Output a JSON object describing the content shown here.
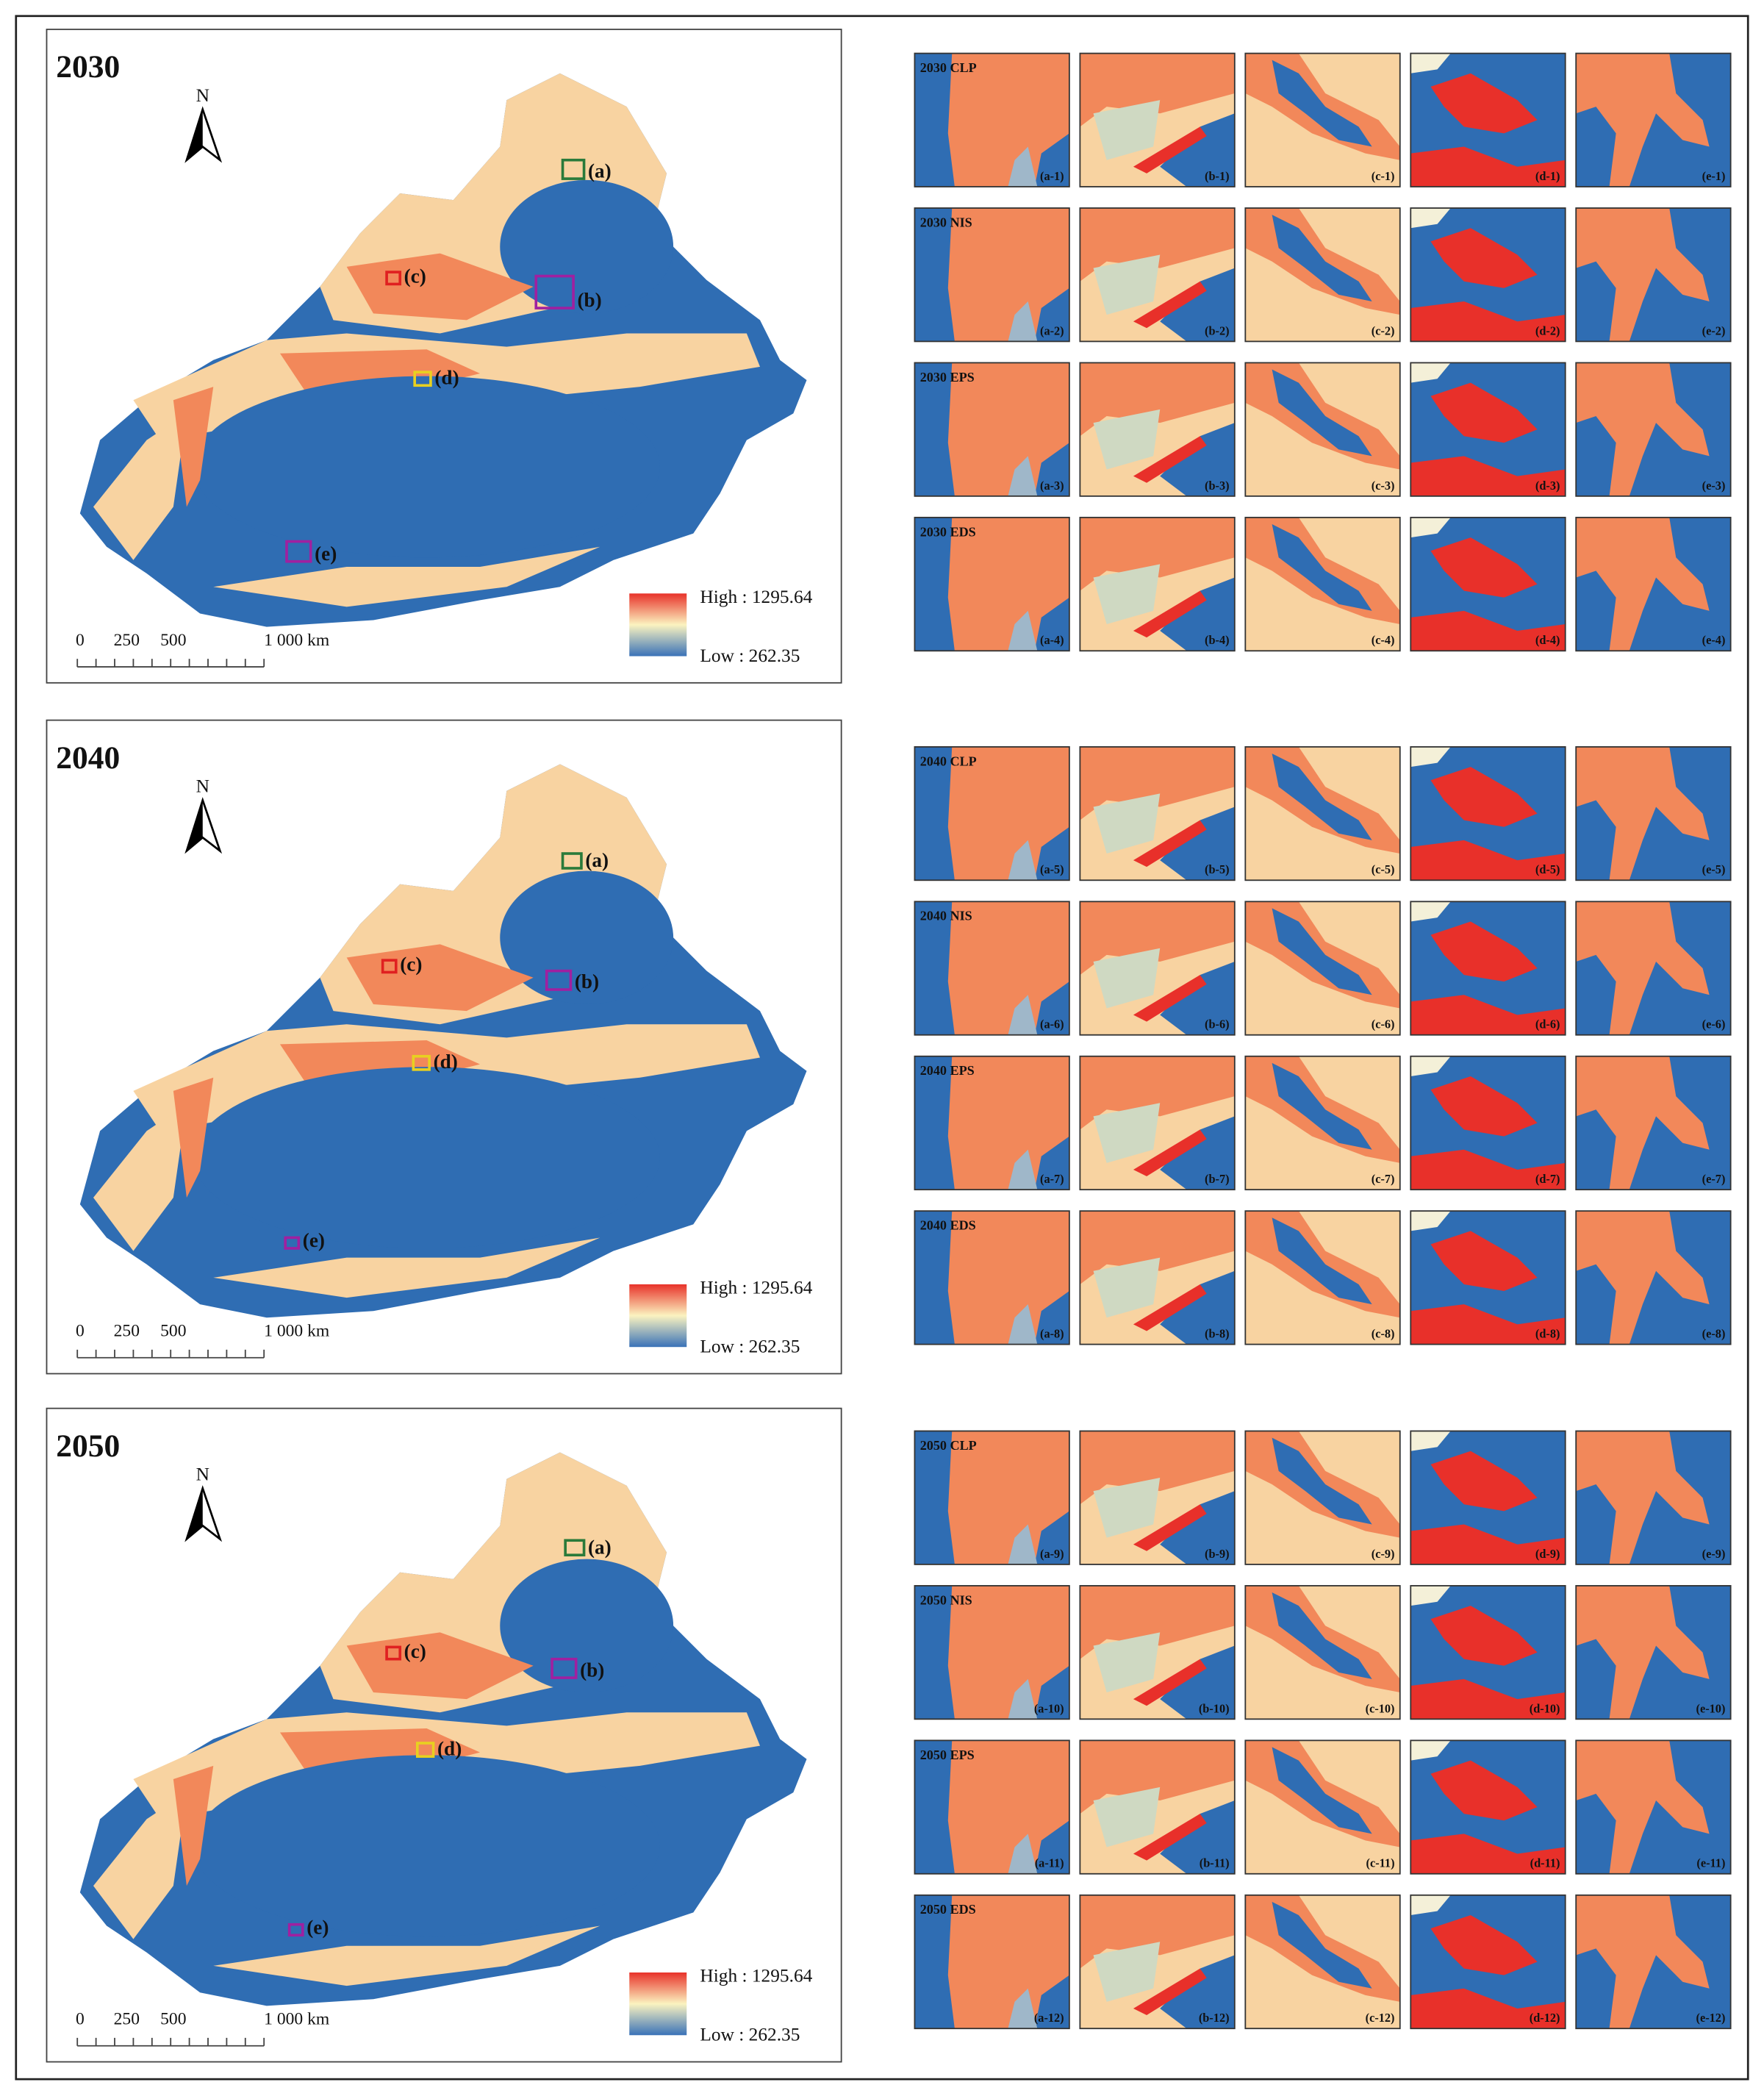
{
  "panels": [
    {
      "year": "2030",
      "north": "N",
      "boxes": [
        "(a)",
        "(b)",
        "(c)",
        "(d)",
        "(e)"
      ],
      "scale": [
        "0",
        "250",
        "500",
        "1 000 km"
      ],
      "legend": {
        "high": "High : 1295.64",
        "low": "Low : 262.35"
      },
      "rows": [
        {
          "scenario": "2030 CLP",
          "tiles": [
            "(a-1)",
            "(b-1)",
            "(c-1)",
            "(d-1)",
            "(e-1)"
          ]
        },
        {
          "scenario": "2030 NIS",
          "tiles": [
            "(a-2)",
            "(b-2)",
            "(c-2)",
            "(d-2)",
            "(e-2)"
          ]
        },
        {
          "scenario": "2030 EPS",
          "tiles": [
            "(a-3)",
            "(b-3)",
            "(c-3)",
            "(d-3)",
            "(e-3)"
          ]
        },
        {
          "scenario": "2030 EDS",
          "tiles": [
            "(a-4)",
            "(b-4)",
            "(c-4)",
            "(d-4)",
            "(e-4)"
          ]
        }
      ]
    },
    {
      "year": "2040",
      "north": "N",
      "boxes": [
        "(a)",
        "(b)",
        "(c)",
        "(d)",
        "(e)"
      ],
      "scale": [
        "0",
        "250",
        "500",
        "1 000 km"
      ],
      "legend": {
        "high": "High : 1295.64",
        "low": "Low : 262.35"
      },
      "rows": [
        {
          "scenario": "2040 CLP",
          "tiles": [
            "(a-5)",
            "(b-5)",
            "(c-5)",
            "(d-5)",
            "(e-5)"
          ]
        },
        {
          "scenario": "2040 NIS",
          "tiles": [
            "(a-6)",
            "(b-6)",
            "(c-6)",
            "(d-6)",
            "(e-6)"
          ]
        },
        {
          "scenario": "2040 EPS",
          "tiles": [
            "(a-7)",
            "(b-7)",
            "(c-7)",
            "(d-7)",
            "(e-7)"
          ]
        },
        {
          "scenario": "2040 EDS",
          "tiles": [
            "(a-8)",
            "(b-8)",
            "(c-8)",
            "(d-8)",
            "(e-8)"
          ]
        }
      ]
    },
    {
      "year": "2050",
      "north": "N",
      "boxes": [
        "(a)",
        "(b)",
        "(c)",
        "(d)",
        "(e)"
      ],
      "scale": [
        "0",
        "250",
        "500",
        "1 000 km"
      ],
      "legend": {
        "high": "High : 1295.64",
        "low": "Low : 262.35"
      },
      "rows": [
        {
          "scenario": "2050 CLP",
          "tiles": [
            "(a-9)",
            "(b-9)",
            "(c-9)",
            "(d-9)",
            "(e-9)"
          ]
        },
        {
          "scenario": "2050 NIS",
          "tiles": [
            "(a-10)",
            "(b-10)",
            "(c-10)",
            "(d-10)",
            "(e-10)"
          ]
        },
        {
          "scenario": "2050 EPS",
          "tiles": [
            "(a-11)",
            "(b-11)",
            "(c-11)",
            "(d-11)",
            "(e-11)"
          ]
        },
        {
          "scenario": "2050 EDS",
          "tiles": [
            "(a-12)",
            "(b-12)",
            "(c-12)",
            "(d-12)",
            "(e-12)"
          ]
        }
      ]
    }
  ]
}
